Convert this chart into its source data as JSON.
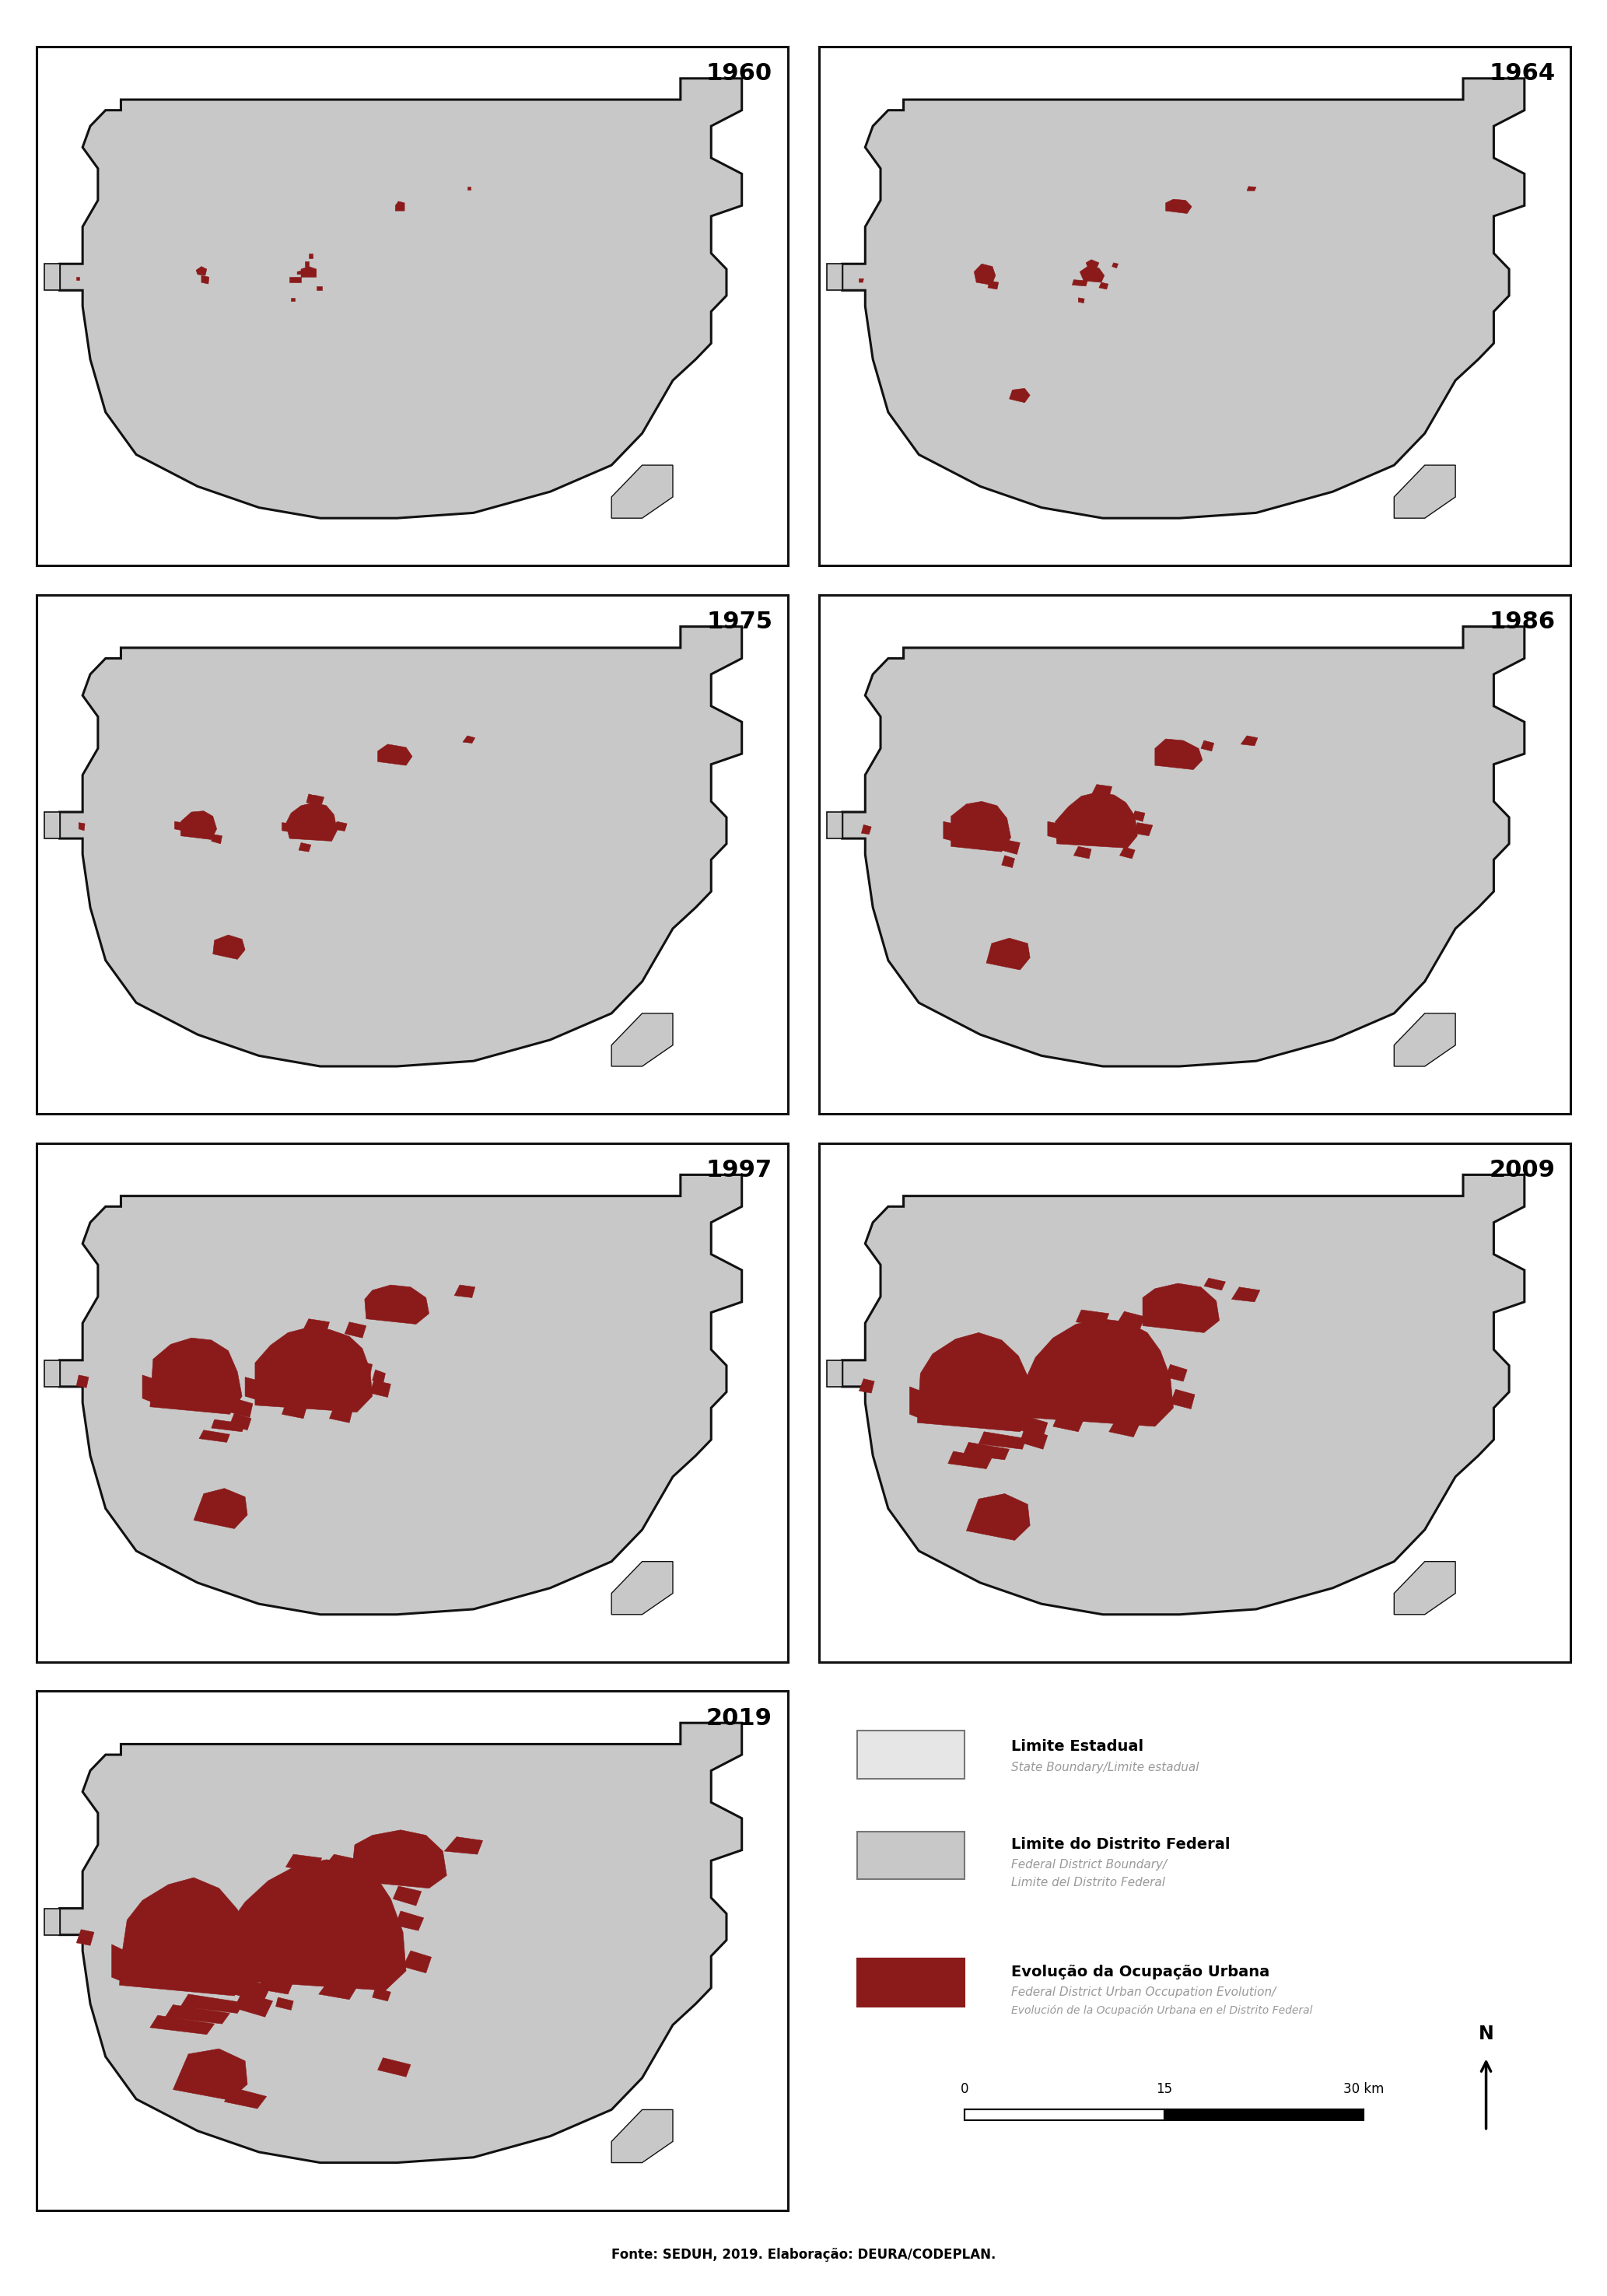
{
  "years": [
    "1960",
    "1964",
    "1975",
    "1986",
    "1997",
    "2009",
    "2019"
  ],
  "background_color": "#ffffff",
  "outer_bg": "#e6e6e6",
  "df_bg": "#c8c8c8",
  "border_color": "#111111",
  "urban_color": "#8b1a1a",
  "legend_label_1": "Limite Estadual",
  "legend_sub_1": "State Boundary/Limite estadual",
  "legend_color_1": "#e6e6e6",
  "legend_border_1": "#777777",
  "legend_label_2": "Limite do Distrito Federal",
  "legend_sub_2a": "Federal District Boundary/",
  "legend_sub_2b": "Limite del Distrito Federal",
  "legend_color_2": "#c8c8c8",
  "legend_border_2": "#777777",
  "legend_label_3": "Evolução da Ocupação Urbana",
  "legend_sub_3a": "Federal District Urban Occupation Evolution/",
  "legend_sub_3b": "Evolución de la Ocupación Urbana en el Distrito Federal",
  "legend_color_3": "#8b1a1a",
  "fonte": "Fonte: SEDUH, 2019. Elaboração: DEURA/CODEPLAN."
}
